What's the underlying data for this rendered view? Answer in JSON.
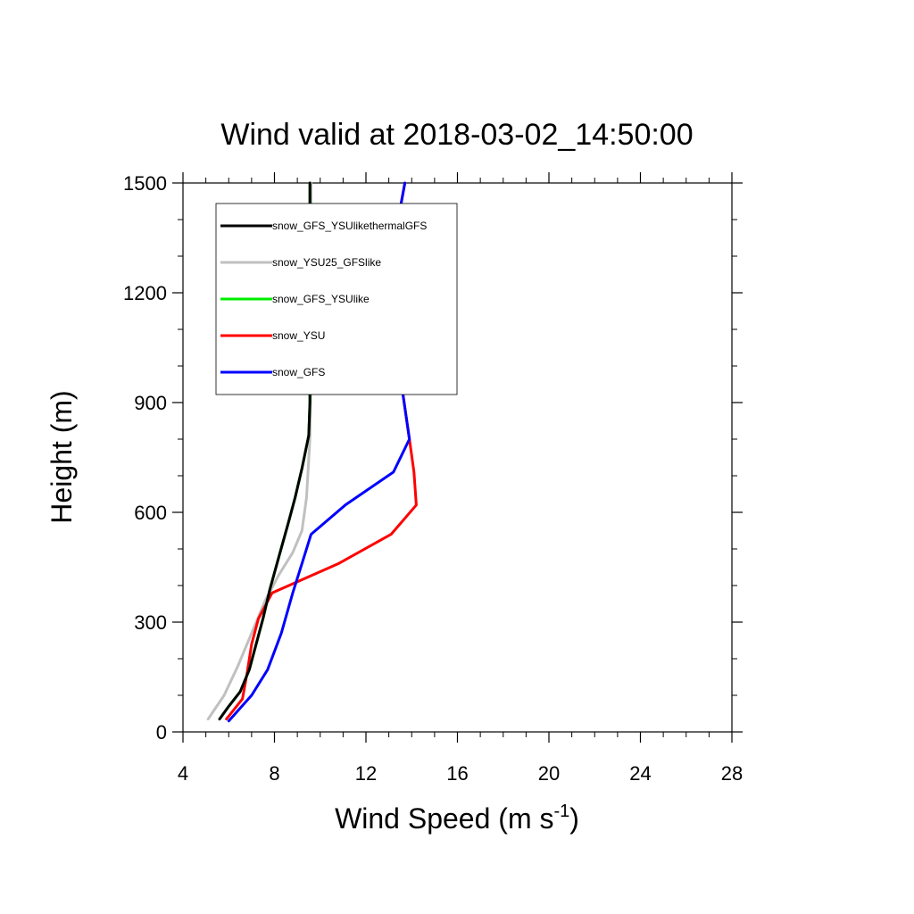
{
  "chart_data": {
    "type": "line",
    "title": "Wind valid at 2018-03-02_14:50:00",
    "xlabel": {
      "main": "Wind Speed (m s",
      "superscript": "-1",
      "close": ")"
    },
    "ylabel": "Height (m)",
    "xlim": [
      4,
      28
    ],
    "ylim": [
      0,
      1500
    ],
    "xticks": [
      4,
      8,
      12,
      16,
      20,
      24,
      28
    ],
    "yticks": [
      0,
      300,
      600,
      900,
      1200,
      1500
    ],
    "grid": false,
    "legend_position": "top-left",
    "series": [
      {
        "name": "snow_GFS_YSUlikethermalGFS",
        "color": "#000000",
        "points": [
          [
            5.6,
            35
          ],
          [
            6.0,
            70
          ],
          [
            6.5,
            110
          ],
          [
            6.9,
            170
          ],
          [
            7.2,
            240
          ],
          [
            7.5,
            310
          ],
          [
            7.8,
            390
          ],
          [
            8.2,
            480
          ],
          [
            8.6,
            570
          ],
          [
            8.9,
            640
          ],
          [
            9.2,
            720
          ],
          [
            9.5,
            810
          ],
          [
            9.55,
            900
          ],
          [
            9.55,
            1100
          ],
          [
            9.55,
            1300
          ],
          [
            9.55,
            1500
          ]
        ]
      },
      {
        "name": "snow_YSU25_GFSlike",
        "color": "#c0c0c0",
        "points": [
          [
            5.1,
            35
          ],
          [
            5.8,
            100
          ],
          [
            6.4,
            180
          ],
          [
            7.0,
            270
          ],
          [
            7.6,
            360
          ],
          [
            8.2,
            430
          ],
          [
            8.8,
            490
          ],
          [
            9.2,
            550
          ],
          [
            9.4,
            640
          ],
          [
            9.55,
            800
          ],
          [
            9.6,
            1000
          ],
          [
            9.6,
            1300
          ],
          [
            9.6,
            1500
          ]
        ]
      },
      {
        "name": "snow_GFS_YSUlike",
        "color": "#00ee00",
        "points": [
          [
            5.6,
            35
          ],
          [
            6.0,
            70
          ],
          [
            6.5,
            110
          ],
          [
            6.9,
            170
          ],
          [
            7.2,
            240
          ],
          [
            7.5,
            310
          ],
          [
            7.8,
            390
          ],
          [
            8.2,
            480
          ],
          [
            8.6,
            570
          ],
          [
            8.9,
            640
          ],
          [
            9.2,
            720
          ],
          [
            9.5,
            810
          ],
          [
            9.55,
            900
          ],
          [
            9.55,
            1100
          ],
          [
            9.55,
            1300
          ],
          [
            9.55,
            1500
          ]
        ]
      },
      {
        "name": "snow_YSU",
        "color": "#ff0000",
        "points": [
          [
            5.9,
            35
          ],
          [
            6.6,
            90
          ],
          [
            6.8,
            160
          ],
          [
            7.0,
            240
          ],
          [
            7.3,
            310
          ],
          [
            7.9,
            380
          ],
          [
            10.8,
            460
          ],
          [
            13.1,
            540
          ],
          [
            14.2,
            620
          ],
          [
            14.1,
            710
          ],
          [
            13.9,
            800
          ],
          [
            13.6,
            930
          ],
          [
            13.3,
            1050
          ],
          [
            13.0,
            1180
          ],
          [
            13.2,
            1330
          ],
          [
            13.7,
            1500
          ]
        ]
      },
      {
        "name": "snow_GFS",
        "color": "#0000ff",
        "points": [
          [
            6.0,
            30
          ],
          [
            7.0,
            100
          ],
          [
            7.7,
            170
          ],
          [
            8.3,
            270
          ],
          [
            8.8,
            380
          ],
          [
            9.2,
            460
          ],
          [
            9.6,
            540
          ],
          [
            11.1,
            620
          ],
          [
            13.2,
            710
          ],
          [
            13.9,
            800
          ],
          [
            13.6,
            930
          ],
          [
            13.3,
            1050
          ],
          [
            13.1,
            1180
          ],
          [
            13.2,
            1330
          ],
          [
            13.7,
            1500
          ]
        ]
      }
    ]
  }
}
